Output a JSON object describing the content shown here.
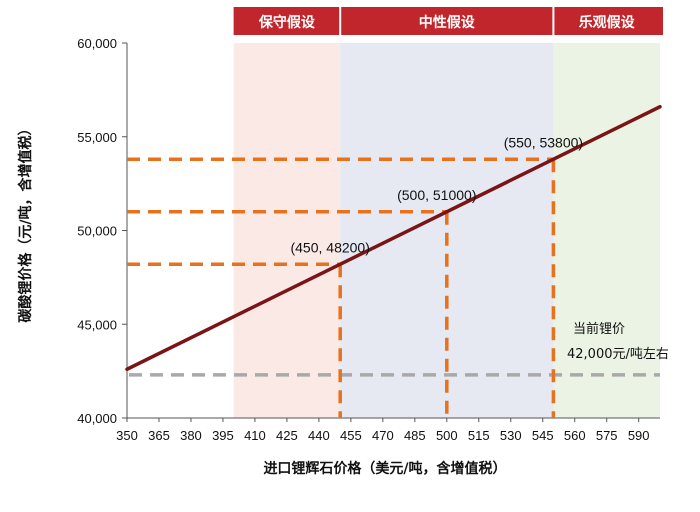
{
  "chart_data": {
    "type": "line",
    "title": "",
    "xlabel": "进口锂辉石价格（美元/吨，含增值税）",
    "ylabel": "碳酸锂价格（元/吨，含增值税）",
    "xlim": [
      350,
      600
    ],
    "ylim": [
      40000,
      60000
    ],
    "x_ticks": [
      350,
      365,
      380,
      395,
      410,
      425,
      440,
      455,
      470,
      485,
      500,
      515,
      530,
      545,
      560,
      575,
      590
    ],
    "y_ticks": [
      40000,
      45000,
      50000,
      55000,
      60000
    ],
    "y_tick_labels": [
      "40,000",
      "45,000",
      "50,000",
      "55,000",
      "60,000"
    ],
    "series": [
      {
        "x": [
          350,
          600
        ],
        "y": [
          42600,
          56600
        ],
        "color": "#7b1416"
      }
    ],
    "bands": [
      {
        "label": "保守假设",
        "x0": 400,
        "x1": 450,
        "color": "#fbe9e6"
      },
      {
        "label": "中性假设",
        "x0": 450,
        "x1": 550,
        "color": "#e6e9f2"
      },
      {
        "label": "乐观假设",
        "x0": 550,
        "x1": 600,
        "color": "#eaf3e4"
      }
    ],
    "band_header_color": "#c0262b",
    "highlight_points": [
      {
        "x": 450,
        "y": 48200,
        "label": "(450, 48200)"
      },
      {
        "x": 500,
        "y": 51000,
        "label": "(500, 51000)"
      },
      {
        "x": 550,
        "y": 53800,
        "label": "(550, 53800)"
      }
    ],
    "highlight_color": "#e8711d",
    "reference_line": {
      "y": 42300,
      "label_line1": "当前锂价",
      "label_line2": "42,000元/吨左右",
      "color": "#a9a9a9"
    },
    "grid": false
  }
}
